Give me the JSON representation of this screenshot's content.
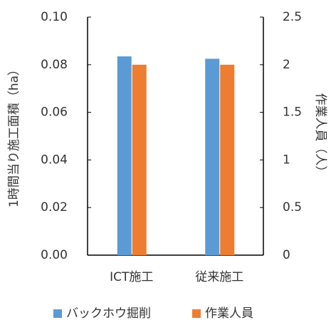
{
  "chart_data": {
    "type": "bar",
    "categories": [
      "ICT施工",
      "従来施工"
    ],
    "series": [
      {
        "name": "バックホウ掘削",
        "color": "#5b9bd5",
        "values": [
          0.0835,
          0.0825
        ]
      },
      {
        "name": "作業人員",
        "color": "#ed7d31",
        "values": [
          2,
          2
        ],
        "axis": "y2"
      }
    ],
    "ylabel": "1時間当り施工面積（ha）",
    "y2label": "作業人員（人）",
    "ylim": [
      0,
      0.1
    ],
    "yticks": [
      {
        "value": 0,
        "label": "0.00"
      },
      {
        "value": 0.02,
        "label": "0.02"
      },
      {
        "value": 0.04,
        "label": "0.04"
      },
      {
        "value": 0.06,
        "label": "0.06"
      },
      {
        "value": 0.08,
        "label": "0.08"
      },
      {
        "value": 0.1,
        "label": "0.10"
      }
    ],
    "y2lim": [
      0,
      2.5
    ],
    "y2ticks": [
      0,
      0.5,
      1,
      1.5,
      2,
      2.5
    ],
    "legend": "bottom",
    "grid": false
  }
}
